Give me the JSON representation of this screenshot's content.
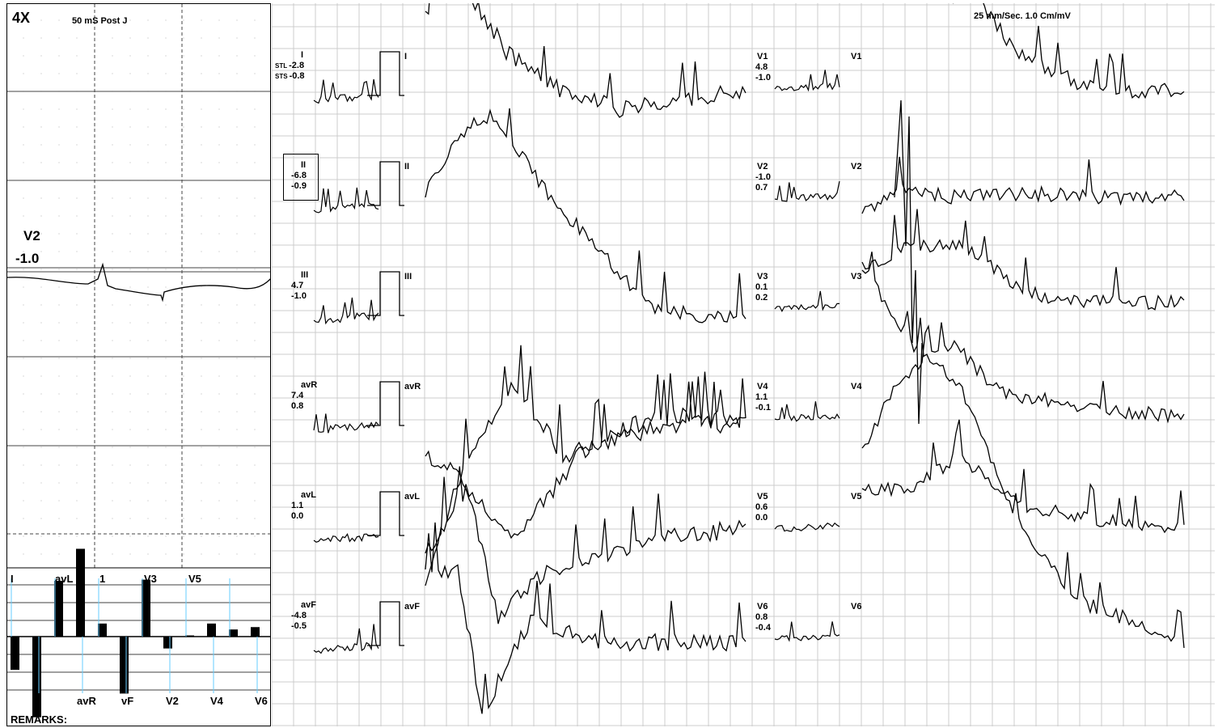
{
  "header": {
    "magnification": "4X",
    "measurement_point": "50 mS Post J",
    "speed_calibration": "25 mm/Sec.   1.0 Cm/mV"
  },
  "focus": {
    "lead": "V2",
    "value": "-1.0"
  },
  "st_labels": {
    "stl": "STL",
    "sts": "STS"
  },
  "leads": [
    {
      "name": "I",
      "st_level": "-2.8",
      "st_slope": "-0.8"
    },
    {
      "name": "II",
      "st_level": "-6.8",
      "st_slope": "-0.9"
    },
    {
      "name": "III",
      "st_level": "4.7",
      "st_slope": "-1.0"
    },
    {
      "name": "avR",
      "st_level": "7.4",
      "st_slope": "0.8"
    },
    {
      "name": "avL",
      "st_level": "1.1",
      "st_slope": "0.0"
    },
    {
      "name": "avF",
      "st_level": "-4.8",
      "st_slope": "-0.5"
    },
    {
      "name": "V1",
      "st_level": "4.8",
      "st_slope": "-1.0"
    },
    {
      "name": "V2",
      "st_level": "-1.0",
      "st_slope": "0.7"
    },
    {
      "name": "V3",
      "st_level": "0.1",
      "st_slope": "0.2"
    },
    {
      "name": "V4",
      "st_level": "1.1",
      "st_slope": "-0.1"
    },
    {
      "name": "V5",
      "st_level": "0.6",
      "st_slope": "0.0"
    },
    {
      "name": "V6",
      "st_level": "0.8",
      "st_slope": "-0.4"
    }
  ],
  "bar_chart": {
    "top_labels": [
      "I",
      "avL",
      "1",
      "V3",
      "V5"
    ],
    "bottom_labels": [
      "avR",
      "vF",
      "V2",
      "V4",
      "V6"
    ],
    "values": [
      -2.8,
      -6.8,
      4.7,
      7.4,
      1.1,
      -4.8,
      4.8,
      -1.0,
      0.1,
      1.1,
      0.6,
      0.8
    ]
  },
  "footer": {
    "remarks": "REMARKS:"
  },
  "colors": {
    "grid": "#cccccc",
    "trace": "#000000",
    "marker": "#66ccff"
  }
}
